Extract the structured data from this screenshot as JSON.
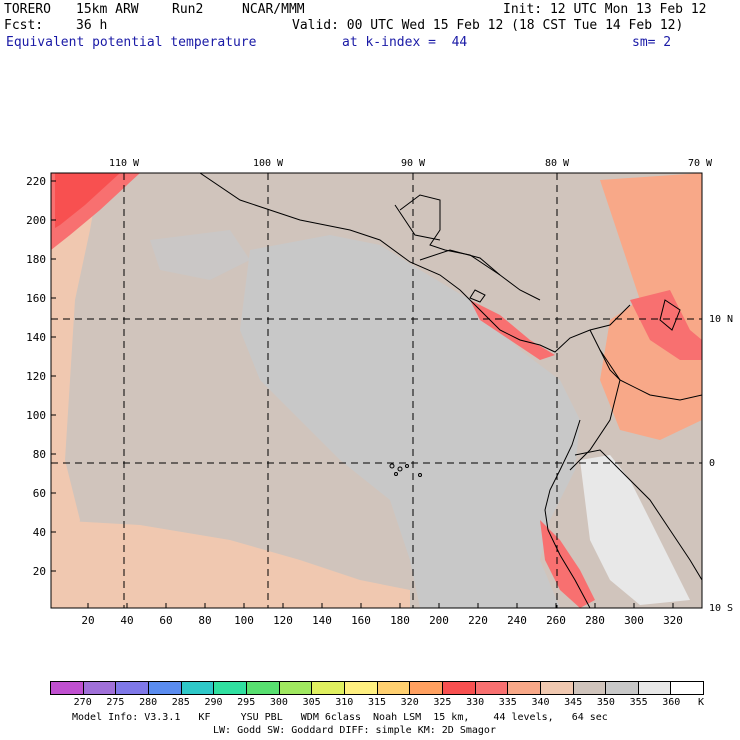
{
  "header": {
    "model": "TORERO",
    "resolution": "15km ARW",
    "run": "Run2",
    "org": "NCAR/MMM",
    "init": "Init: 12 UTC Mon 13 Feb 12",
    "fcst_label": "Fcst:",
    "fcst_value": "36 h",
    "valid": "Valid: 00 UTC Wed 15 Feb 12 (18 CST Tue 14 Feb 12)",
    "field": "Equivalent potential temperature",
    "level": "at k-index =  44",
    "smoothing": "sm= 2"
  },
  "map": {
    "lon_labels": [
      "110 W",
      "100 W",
      "90 W",
      "80 W",
      "70 W"
    ],
    "lat_labels": [
      "10 N",
      "0",
      "10 S"
    ],
    "y_ticks": [
      "220",
      "200",
      "180",
      "160",
      "140",
      "120",
      "100",
      "80",
      "60",
      "40",
      "20"
    ],
    "x_ticks": [
      "20",
      "40",
      "60",
      "80",
      "100",
      "120",
      "140",
      "160",
      "180",
      "200",
      "220",
      "240",
      "260",
      "280",
      "300",
      "320"
    ]
  },
  "colorbar": {
    "labels": [
      "270",
      "275",
      "280",
      "285",
      "290",
      "295",
      "300",
      "305",
      "310",
      "315",
      "320",
      "325",
      "330",
      "335",
      "340",
      "345",
      "350",
      "355",
      "360",
      "K"
    ],
    "colors": [
      "#c050d0",
      "#a070d8",
      "#7f78e8",
      "#5a8cf0",
      "#2ec8c8",
      "#30e0a0",
      "#58e070",
      "#a0e860",
      "#e0f060",
      "#fff080",
      "#ffd070",
      "#ffa060",
      "#f85050",
      "#f87070",
      "#f8a888",
      "#f0c8b0",
      "#d0c4bc",
      "#c8c8c8",
      "#e8e8e8",
      "#ffffff"
    ]
  },
  "footer": {
    "line1": "Model Info: V3.3.1   KF     YSU PBL   WDM 6class  Noah LSM  15 km,    44 levels,   64 sec",
    "line2": "LW: Godd SW: Goddard DIFF: simple KM: 2D Smagor"
  }
}
